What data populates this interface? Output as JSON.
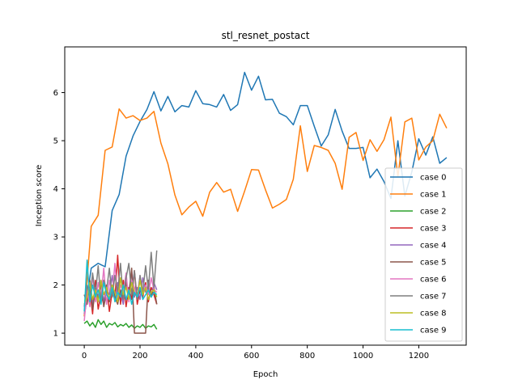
{
  "chart_data": {
    "type": "line",
    "title": "stl_resnet_postact",
    "xlabel": "Epoch",
    "ylabel": "Inception score",
    "xlim": [
      -70,
      1370
    ],
    "ylim": [
      0.75,
      6.95
    ],
    "xticks": [
      0,
      200,
      400,
      600,
      800,
      1000,
      1200
    ],
    "yticks": [
      1,
      2,
      3,
      4,
      5,
      6
    ],
    "legend_position": "lower-right",
    "grid": false,
    "series": [
      {
        "name": "case 0",
        "color": "#1f77b4",
        "x": [
          0,
          25,
          50,
          75,
          100,
          125,
          150,
          175,
          200,
          225,
          250,
          275,
          300,
          325,
          350,
          375,
          400,
          425,
          450,
          475,
          500,
          525,
          550,
          575,
          600,
          625,
          650,
          675,
          700,
          725,
          750,
          775,
          800,
          825,
          850,
          875,
          900,
          925,
          950,
          975,
          1000,
          1025,
          1050,
          1075,
          1100,
          1125,
          1150,
          1175,
          1200,
          1225,
          1250,
          1275,
          1300
        ],
        "y": [
          1.35,
          2.35,
          2.45,
          2.38,
          3.55,
          3.88,
          4.68,
          5.1,
          5.4,
          5.65,
          6.02,
          5.62,
          5.92,
          5.6,
          5.73,
          5.7,
          6.04,
          5.77,
          5.75,
          5.7,
          5.96,
          5.63,
          5.75,
          6.42,
          6.05,
          6.34,
          5.85,
          5.86,
          5.57,
          5.5,
          5.33,
          5.73,
          5.73,
          5.3,
          4.89,
          5.12,
          5.65,
          5.2,
          4.84,
          4.84,
          4.86,
          4.23,
          4.41,
          4.15,
          3.8,
          5.0,
          3.85,
          4.35,
          5.04,
          4.7,
          5.08,
          4.53,
          4.65
        ]
      },
      {
        "name": "case 1",
        "color": "#ff7f0e",
        "x": [
          0,
          25,
          50,
          75,
          100,
          125,
          150,
          175,
          200,
          225,
          250,
          275,
          300,
          325,
          350,
          375,
          400,
          425,
          450,
          475,
          500,
          525,
          550,
          575,
          600,
          625,
          650,
          675,
          700,
          725,
          750,
          775,
          800,
          825,
          850,
          875,
          900,
          925,
          950,
          975,
          1000,
          1025,
          1050,
          1075,
          1100,
          1125,
          1150,
          1175,
          1200,
          1225,
          1250,
          1275,
          1300
        ],
        "y": [
          1.35,
          3.22,
          3.45,
          4.8,
          4.87,
          5.66,
          5.47,
          5.52,
          5.42,
          5.47,
          5.61,
          4.95,
          4.52,
          3.87,
          3.46,
          3.62,
          3.74,
          3.43,
          3.93,
          4.13,
          3.93,
          3.99,
          3.53,
          3.95,
          4.4,
          4.39,
          3.98,
          3.6,
          3.68,
          3.78,
          4.2,
          5.31,
          4.36,
          4.9,
          4.86,
          4.8,
          4.53,
          3.99,
          5.07,
          5.17,
          4.59,
          5.02,
          4.78,
          5.02,
          5.49,
          4.25,
          5.39,
          5.47,
          4.6,
          4.87,
          5.0,
          5.55,
          5.26
        ]
      },
      {
        "name": "case 2",
        "color": "#2ca02c",
        "x": [
          0,
          10,
          20,
          30,
          40,
          50,
          60,
          70,
          80,
          90,
          100,
          110,
          120,
          130,
          140,
          150,
          160,
          170,
          180,
          190,
          200,
          210,
          220,
          230,
          240,
          250,
          260
        ],
        "y": [
          1.2,
          1.25,
          1.15,
          1.22,
          1.12,
          1.28,
          1.18,
          1.25,
          1.12,
          1.2,
          1.17,
          1.22,
          1.13,
          1.18,
          1.15,
          1.2,
          1.12,
          1.17,
          1.1,
          1.15,
          1.12,
          1.18,
          1.1,
          1.15,
          1.13,
          1.18,
          1.08
        ]
      },
      {
        "name": "case 3",
        "color": "#d62728",
        "x": [
          0,
          10,
          20,
          30,
          40,
          50,
          60,
          70,
          80,
          90,
          100,
          110,
          120,
          130,
          140,
          150,
          160,
          170,
          180,
          190,
          200,
          210,
          220,
          230,
          240,
          250,
          260
        ],
        "y": [
          1.55,
          1.65,
          1.9,
          1.4,
          2.1,
          1.5,
          1.8,
          1.6,
          2.0,
          1.45,
          1.85,
          1.7,
          2.62,
          1.6,
          2.1,
          1.55,
          1.95,
          1.7,
          2.3,
          1.6,
          1.9,
          1.75,
          2.05,
          1.65,
          1.95,
          1.8,
          1.6
        ]
      },
      {
        "name": "case 4",
        "color": "#9467bd",
        "x": [
          0,
          10,
          20,
          30,
          40,
          50,
          60,
          70,
          80,
          90,
          100,
          110,
          120,
          130,
          140,
          150,
          160,
          170,
          180,
          190,
          200,
          210,
          220,
          230,
          240,
          250,
          260
        ],
        "y": [
          1.4,
          1.7,
          2.0,
          1.6,
          1.95,
          1.75,
          2.1,
          1.65,
          1.9,
          1.8,
          2.2,
          1.7,
          2.05,
          1.85,
          1.6,
          2.1,
          1.8,
          2.3,
          1.75,
          1.95,
          1.7,
          2.15,
          1.85,
          2.0,
          1.75,
          2.05,
          1.9
        ]
      },
      {
        "name": "case 5",
        "color": "#8c564b",
        "x": [
          0,
          10,
          20,
          30,
          40,
          50,
          60,
          70,
          80,
          90,
          100,
          110,
          120,
          130,
          140,
          150,
          160,
          170,
          180,
          190,
          200,
          210,
          220,
          230,
          240,
          250,
          260
        ],
        "y": [
          1.8,
          1.6,
          2.1,
          1.5,
          1.9,
          1.7,
          2.0,
          1.55,
          1.85,
          1.65,
          1.95,
          1.75,
          1.6,
          1.9,
          1.7,
          2.05,
          1.8,
          2.35,
          1.0,
          1.0,
          1.0,
          1.0,
          1.0,
          2.1,
          1.75,
          1.95,
          1.6
        ]
      },
      {
        "name": "case 6",
        "color": "#e377c2",
        "x": [
          0,
          10,
          20,
          30,
          40,
          50,
          60,
          70,
          80,
          90,
          100,
          110,
          120,
          130,
          140,
          150,
          160,
          170,
          180,
          190,
          200,
          210,
          220,
          230,
          240,
          250,
          260
        ],
        "y": [
          1.25,
          1.9,
          1.55,
          2.2,
          1.65,
          2.05,
          1.75,
          2.35,
          1.6,
          2.1,
          1.8,
          2.45,
          1.7,
          2.0,
          1.85,
          2.25,
          1.65,
          2.1,
          1.95,
          1.75,
          2.2,
          1.85,
          2.0,
          1.8,
          2.15,
          1.9,
          1.85
        ]
      },
      {
        "name": "case 7",
        "color": "#7f7f7f",
        "x": [
          0,
          10,
          20,
          30,
          40,
          50,
          60,
          70,
          80,
          90,
          100,
          110,
          120,
          130,
          140,
          150,
          160,
          170,
          180,
          190,
          200,
          210,
          220,
          230,
          240,
          250,
          260
        ],
        "y": [
          1.55,
          2.0,
          1.7,
          2.25,
          1.8,
          2.4,
          1.65,
          2.1,
          1.9,
          2.35,
          1.75,
          2.2,
          1.85,
          2.45,
          1.7,
          2.15,
          2.45,
          1.8,
          2.3,
          1.7,
          2.2,
          1.85,
          2.4,
          1.9,
          2.68,
          1.95,
          2.72
        ]
      },
      {
        "name": "case 8",
        "color": "#bcbd22",
        "x": [
          0,
          10,
          20,
          30,
          40,
          50,
          60,
          70,
          80,
          90,
          100,
          110,
          120,
          130,
          140,
          150,
          160,
          170,
          180,
          190,
          200,
          210,
          220,
          230,
          240,
          250,
          260
        ],
        "y": [
          1.6,
          1.75,
          2.05,
          1.7,
          1.9,
          1.65,
          2.1,
          1.8,
          1.95,
          1.7,
          2.0,
          1.85,
          1.65,
          2.15,
          1.8,
          1.95,
          1.7,
          2.05,
          1.85,
          1.75,
          2.1,
          1.8,
          1.95,
          1.7,
          1.85,
          1.9,
          1.75
        ]
      },
      {
        "name": "case 9",
        "color": "#17becf",
        "x": [
          0,
          10,
          20,
          30,
          40,
          50,
          60,
          70,
          80,
          90,
          100,
          110,
          120,
          130,
          140,
          150,
          160,
          170,
          180,
          190,
          200,
          210,
          220,
          230,
          240,
          250,
          260
        ],
        "y": [
          1.45,
          2.52,
          1.65,
          2.0,
          1.75,
          1.9,
          1.6,
          2.05,
          1.8,
          1.7,
          1.95,
          1.65,
          1.85,
          1.75,
          2.0,
          1.7,
          1.9,
          1.6,
          1.85,
          1.75,
          1.95,
          1.7,
          1.8,
          1.9,
          1.75,
          1.85,
          1.8
        ]
      }
    ]
  }
}
